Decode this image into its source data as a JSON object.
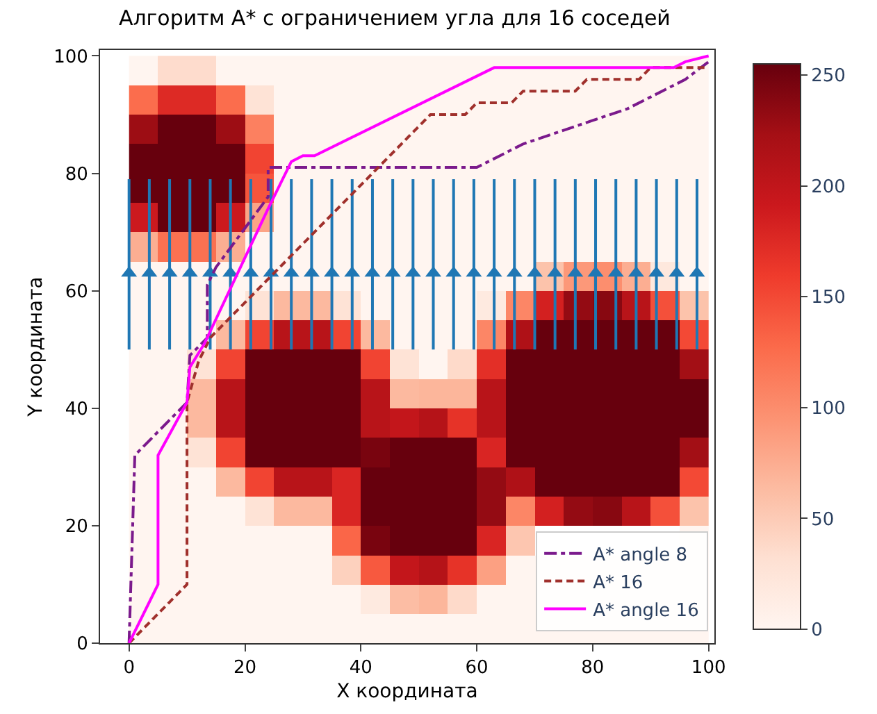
{
  "chart_data": {
    "type": "heatmap",
    "title": "Алгоритм A* с ограничением угла для 16 соседей",
    "xlabel": "X координата",
    "ylabel": "Y координата",
    "xlim": [
      -5,
      101
    ],
    "ylim": [
      0,
      101
    ],
    "xticks": [
      0,
      20,
      40,
      60,
      80,
      100
    ],
    "yticks": [
      0,
      20,
      40,
      60,
      80,
      100
    ],
    "grid": false,
    "legend": "bottom right",
    "clim": [
      0,
      255
    ],
    "cticks": [
      0,
      50,
      100,
      150,
      200,
      250
    ],
    "x": [
      2.5,
      7.5,
      12.5,
      17.5,
      22.5,
      27.5,
      32.5,
      37.5,
      42.5,
      47.5,
      52.5,
      57.5,
      62.5,
      67.5,
      72.5,
      77.5,
      82.5,
      87.5,
      92.5,
      97.5
    ],
    "y": [
      97.5,
      92.5,
      87.5,
      82.5,
      77.5,
      72.5,
      67.5,
      62.5,
      57.5,
      52.5,
      47.5,
      42.5,
      37.5,
      32.5,
      27.5,
      22.5,
      17.5,
      12.5,
      7.5,
      2.5
    ],
    "cells": [
      [
        0,
        35,
        35,
        0,
        0,
        0,
        0,
        0,
        0,
        0,
        0,
        0,
        0,
        0,
        0,
        0,
        0,
        0,
        0,
        0
      ],
      [
        125,
        175,
        175,
        125,
        28,
        0,
        0,
        0,
        0,
        0,
        0,
        0,
        0,
        0,
        0,
        0,
        0,
        0,
        0,
        0
      ],
      [
        227,
        255,
        255,
        227,
        110,
        0,
        0,
        0,
        0,
        0,
        0,
        0,
        0,
        0,
        0,
        0,
        0,
        0,
        0,
        0
      ],
      [
        255,
        255,
        255,
        255,
        153,
        0,
        0,
        0,
        0,
        0,
        0,
        0,
        0,
        0,
        0,
        0,
        0,
        0,
        0,
        0
      ],
      [
        255,
        255,
        255,
        255,
        142,
        0,
        0,
        0,
        0,
        0,
        0,
        0,
        0,
        0,
        0,
        0,
        0,
        0,
        0,
        0
      ],
      [
        190,
        255,
        255,
        190,
        82,
        0,
        0,
        0,
        0,
        0,
        0,
        0,
        0,
        0,
        0,
        0,
        0,
        0,
        0,
        0
      ],
      [
        74,
        122,
        122,
        74,
        0,
        0,
        0,
        0,
        0,
        0,
        0,
        0,
        0,
        0,
        0,
        0,
        0,
        0,
        0,
        0
      ],
      [
        0,
        0,
        0,
        0,
        0,
        0,
        0,
        0,
        0,
        0,
        0,
        0,
        0,
        0,
        57,
        91,
        99,
        74,
        20,
        0
      ],
      [
        0,
        0,
        0,
        0,
        28,
        65,
        65,
        28,
        0,
        0,
        0,
        0,
        17,
        105,
        184,
        232,
        238,
        207,
        145,
        57
      ],
      [
        0,
        0,
        0,
        65,
        153,
        207,
        207,
        153,
        65,
        0,
        0,
        0,
        105,
        215,
        255,
        255,
        255,
        255,
        255,
        150
      ],
      [
        0,
        0,
        28,
        153,
        255,
        255,
        255,
        255,
        153,
        28,
        0,
        37,
        170,
        255,
        255,
        255,
        255,
        255,
        255,
        224
      ],
      [
        0,
        0,
        65,
        207,
        255,
        255,
        255,
        255,
        207,
        65,
        68,
        68,
        207,
        255,
        255,
        255,
        255,
        255,
        255,
        255
      ],
      [
        0,
        0,
        65,
        207,
        255,
        255,
        255,
        255,
        207,
        198,
        210,
        167,
        207,
        255,
        255,
        255,
        255,
        255,
        255,
        255
      ],
      [
        0,
        0,
        28,
        153,
        255,
        255,
        255,
        255,
        246,
        255,
        255,
        255,
        179,
        255,
        255,
        255,
        255,
        255,
        255,
        224
      ],
      [
        0,
        0,
        0,
        65,
        153,
        207,
        207,
        179,
        255,
        255,
        255,
        255,
        232,
        215,
        255,
        255,
        255,
        255,
        255,
        150
      ],
      [
        0,
        0,
        0,
        0,
        28,
        65,
        65,
        179,
        255,
        255,
        255,
        255,
        232,
        105,
        184,
        232,
        238,
        207,
        145,
        57
      ],
      [
        0,
        0,
        0,
        0,
        0,
        0,
        0,
        130,
        246,
        255,
        255,
        255,
        179,
        54,
        null,
        null,
        null,
        null,
        null,
        0
      ],
      [
        0,
        0,
        0,
        0,
        0,
        0,
        0,
        45,
        139,
        198,
        210,
        167,
        85,
        0,
        0,
        0,
        0,
        0,
        0,
        0
      ],
      [
        0,
        0,
        0,
        0,
        0,
        0,
        0,
        0,
        17,
        62,
        68,
        37,
        0,
        0,
        0,
        0,
        0,
        0,
        0,
        0
      ],
      [
        0,
        0,
        0,
        0,
        0,
        0,
        0,
        0,
        0,
        0,
        0,
        0,
        0,
        0,
        0,
        0,
        0,
        0,
        0,
        0
      ]
    ],
    "series": [
      {
        "type": "line",
        "color": "#1f77b4",
        "line_style": "solid",
        "x": [
          0,
          0,
          null,
          3.5,
          3.5,
          null,
          7,
          7,
          null,
          10.5,
          10.5,
          null,
          14,
          14,
          null,
          17.5,
          17.5,
          null,
          21,
          21,
          null,
          24.5,
          24.5,
          null,
          28,
          28,
          null,
          31.5,
          31.5,
          null,
          35,
          35,
          null,
          38.5,
          38.5,
          null,
          42,
          42,
          null,
          45.5,
          45.5,
          null,
          49,
          49,
          null,
          52.5,
          52.5,
          null,
          56,
          56,
          null,
          59.5,
          59.5,
          null,
          63,
          63,
          null,
          66.5,
          66.5,
          null,
          70,
          70,
          null,
          73.5,
          73.5,
          null,
          77,
          77,
          null,
          80.5,
          80.5,
          null,
          84,
          84,
          null,
          87.5,
          87.5,
          null,
          91,
          91,
          null,
          94.5,
          94.5,
          null,
          98,
          98,
          null
        ],
        "values": [
          50,
          79,
          null,
          50,
          79,
          null,
          50,
          79,
          null,
          50,
          79,
          null,
          50,
          79,
          null,
          50,
          79,
          null,
          50,
          79,
          null,
          50,
          79,
          null,
          50,
          79,
          null,
          50,
          79,
          null,
          50,
          79,
          null,
          50,
          79,
          null,
          50,
          79,
          null,
          50,
          79,
          null,
          50,
          79,
          null,
          50,
          79,
          null,
          50,
          79,
          null,
          50,
          79,
          null,
          50,
          79,
          null,
          50,
          79,
          null,
          50,
          79,
          null,
          50,
          79,
          null,
          50,
          79,
          null,
          50,
          79,
          null,
          50,
          79,
          null,
          50,
          79,
          null,
          50,
          79,
          null,
          50,
          79,
          null,
          50,
          79,
          null
        ]
      },
      {
        "type": "scatter",
        "color": "#1f77b4",
        "marker": "triangle",
        "x": [
          0,
          3.5,
          7,
          10.5,
          14,
          17.5,
          21,
          24.5,
          28,
          31.5,
          35,
          38.5,
          42,
          45.5,
          49,
          52.5,
          56,
          59.5,
          63,
          66.5,
          70,
          73.5,
          77,
          80.5,
          84,
          87.5,
          91,
          94.5,
          98
        ],
        "values": [
          63,
          63,
          63,
          63,
          63,
          63,
          63,
          63,
          63,
          63,
          63,
          63,
          63,
          63,
          63,
          63,
          63,
          63,
          63,
          63,
          63,
          63,
          63,
          63,
          63,
          63,
          63,
          63,
          63
        ]
      },
      {
        "type": "line",
        "name": "A* angle 8",
        "color": "#7b1a8c",
        "line_style": "dashdot",
        "x": [
          0,
          1,
          10,
          10.5,
          13.5,
          13.5,
          15,
          24,
          24,
          60,
          64,
          68,
          74,
          80,
          86,
          90,
          94,
          96,
          100
        ],
        "values": [
          0,
          32,
          41,
          49,
          52,
          61,
          64,
          76,
          81,
          81,
          83,
          85,
          87,
          89,
          91,
          93,
          95,
          96,
          99
        ]
      },
      {
        "type": "line",
        "name": "A* 16",
        "color": "#a0302c",
        "line_style": "dashed",
        "x": [
          0,
          10,
          10,
          12,
          14,
          52,
          58,
          60,
          66,
          68,
          77,
          79,
          88,
          90,
          100
        ],
        "values": [
          0,
          10,
          41,
          48,
          52,
          90,
          90,
          92,
          92,
          94,
          94,
          96,
          96,
          98,
          98
        ]
      },
      {
        "type": "line",
        "name": "A* angle 16",
        "color": "#ff00ff",
        "line_style": "solid",
        "x": [
          0,
          5,
          5,
          10,
          10.5,
          13,
          24,
          28,
          30,
          32,
          63,
          94,
          96,
          100
        ],
        "values": [
          0,
          10,
          32,
          41,
          47,
          51,
          74,
          82,
          83,
          83,
          98,
          98,
          99,
          100
        ]
      }
    ]
  }
}
